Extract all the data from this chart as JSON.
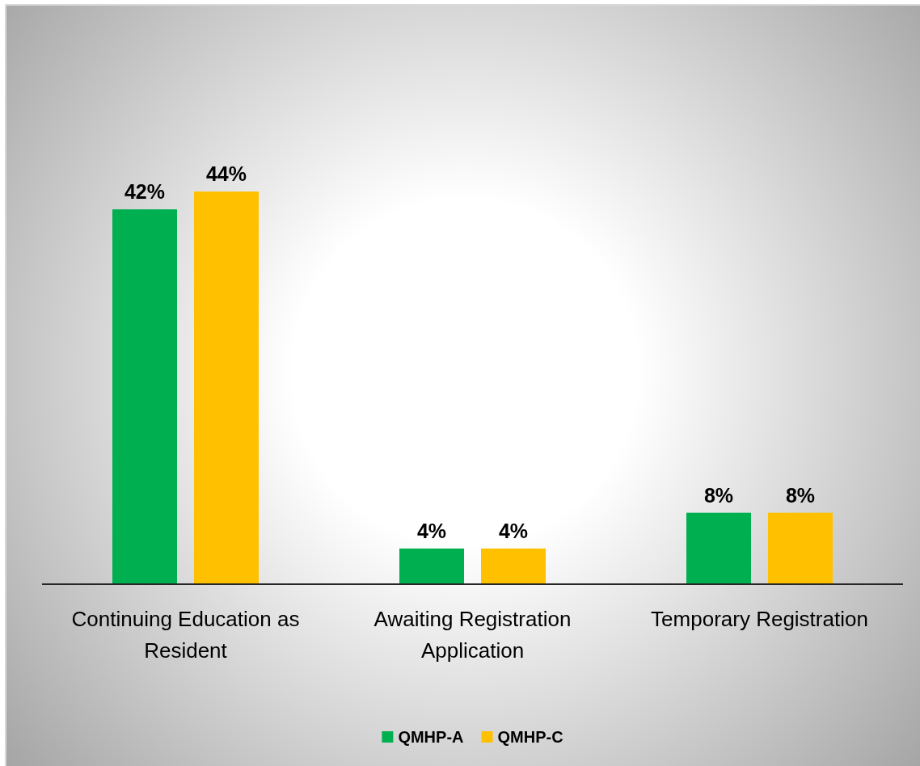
{
  "chart_data": {
    "type": "bar",
    "categories": [
      "Continuing Education as Resident",
      "Awaiting Registration Application",
      "Temporary Registration"
    ],
    "series": [
      {
        "name": "QMHP-A",
        "color": "#00b050",
        "values": [
          42,
          4,
          8
        ],
        "value_labels": [
          "42%",
          "4%",
          "8%"
        ]
      },
      {
        "name": "QMHP-C",
        "color": "#ffc000",
        "values": [
          44,
          4,
          8
        ],
        "value_labels": [
          "44%",
          "4%",
          "8%"
        ]
      }
    ],
    "legend": "bottom"
  }
}
